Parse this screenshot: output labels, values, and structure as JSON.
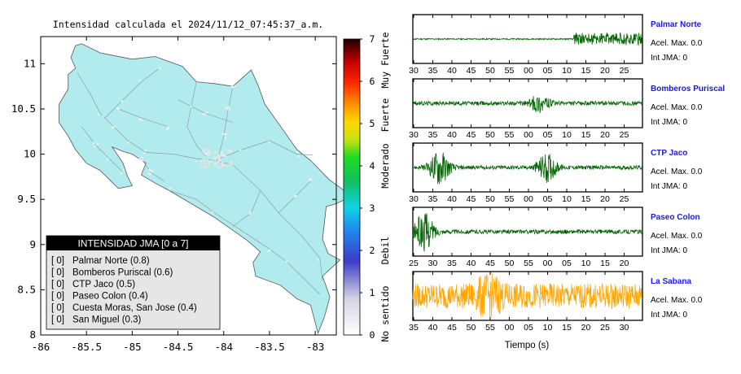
{
  "map": {
    "title": "Intensidad calculada el 2024/11/12_07:45:37_a.m.",
    "lon_ticks": [
      "-86",
      "-85.5",
      "-85",
      "-84.5",
      "-84",
      "-83.5",
      "-83"
    ],
    "lat_ticks": [
      "11",
      "10.5",
      "10",
      "9.5",
      "9",
      "8.5",
      "8"
    ],
    "lon_range": [
      -86,
      -82.77
    ],
    "lat_range": [
      8,
      11.3
    ],
    "land_color": "#b2ebee",
    "legend": {
      "title": "INTENSIDAD JMA [0 a 7]",
      "rows": [
        {
          "intensity": "[ 0]",
          "label": "Palmar Norte (0.8)"
        },
        {
          "intensity": "[ 0]",
          "label": "Bomberos Puriscal (0.6)"
        },
        {
          "intensity": "[ 0]",
          "label": "CTP Jaco (0.5)"
        },
        {
          "intensity": "[ 0]",
          "label": "Paseo Colon (0.4)"
        },
        {
          "intensity": "[ 0]",
          "label": "Cuesta Moras, San Jose (0.4)"
        },
        {
          "intensity": "[ 0]",
          "label": "San Miguel (0.3)"
        }
      ]
    }
  },
  "colorbar": {
    "ticks": [
      "0",
      "1",
      "2",
      "3",
      "4",
      "5",
      "6",
      "7"
    ],
    "labels": [
      "No sentido",
      "Debil",
      "Moderado",
      "Fuerte",
      "Muy Fuerte"
    ],
    "range": [
      0,
      7
    ]
  },
  "chart_data": [
    {
      "type": "line",
      "title": "Palmar Norte",
      "accel_label": "Acel. Max. 0.0",
      "int_label": "Int JMA: 0",
      "color": "#006400",
      "x_ticks": [
        "30",
        "35",
        "40",
        "45",
        "50",
        "55",
        "00",
        "05",
        "10",
        "15",
        "20",
        "25"
      ],
      "tick_first_sec": 30,
      "bursts": [
        {
          "at": 20,
          "amplitude": 0.85
        }
      ]
    },
    {
      "type": "line",
      "title": "Bomberos Puriscal",
      "accel_label": "Acel. Max. 0.0",
      "int_label": "Int JMA: 0",
      "color": "#006400",
      "x_ticks": [
        "30",
        "35",
        "40",
        "45",
        "50",
        "55",
        "00",
        "05",
        "10",
        "15",
        "20",
        "25"
      ],
      "tick_first_sec": 30,
      "bursts": [
        {
          "at": 63,
          "amplitude": 0.35
        }
      ]
    },
    {
      "type": "line",
      "title": "CTP Jaco",
      "accel_label": "Acel. Max. 0.0",
      "int_label": "Int JMA: 0",
      "color": "#006400",
      "x_ticks": [
        "30",
        "35",
        "40",
        "45",
        "50",
        "55",
        "00",
        "05",
        "10",
        "15",
        "20",
        "25"
      ],
      "tick_first_sec": 30,
      "bursts": [
        {
          "at": 37,
          "amplitude": 0.75
        },
        {
          "at": 65,
          "amplitude": 0.6
        }
      ]
    },
    {
      "type": "line",
      "title": "Paseo Colon",
      "accel_label": "Acel. Max. 0.0",
      "int_label": "Int JMA: 0",
      "color": "#006400",
      "x_ticks": [
        "25",
        "30",
        "35",
        "40",
        "45",
        "50",
        "55",
        "00",
        "05",
        "10",
        "15",
        "20"
      ],
      "tick_first_sec": 25,
      "bursts": [
        {
          "at": 33,
          "amplitude": 0.8
        }
      ]
    },
    {
      "type": "line",
      "title": "La Sabana",
      "accel_label": "Acel. Max. 0.0",
      "int_label": "Int JMA: 0",
      "color": "#ffa500",
      "x_ticks": [
        "35",
        "40",
        "45",
        "50",
        "55",
        "00",
        "05",
        "10",
        "15",
        "20",
        "25",
        "30"
      ],
      "tick_first_sec": 35,
      "noise": "high",
      "bursts": [
        {
          "at": 50,
          "amplitude": 0.9
        }
      ]
    }
  ],
  "time_axis_label": "Tiempo (s)"
}
